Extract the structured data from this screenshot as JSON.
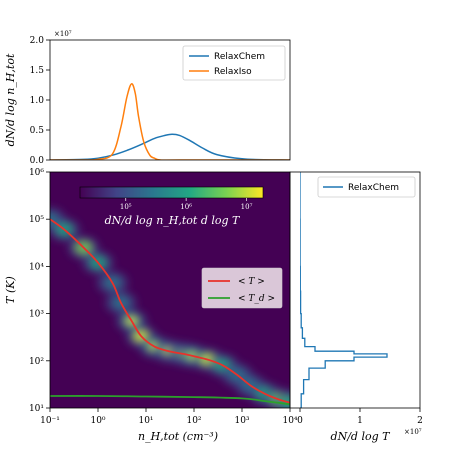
{
  "colors": {
    "relaxchem": "#1f77b4",
    "relaxiso": "#ff7f0e",
    "mean_t": "#e8322b",
    "mean_td": "#2ca02c",
    "heatmap_bg": "#440154",
    "colormap": "viridis"
  },
  "chart_data": [
    {
      "type": "line",
      "panel": "top",
      "xscale": "log",
      "xlim": [
        0.1,
        10000
      ],
      "ylim": [
        0,
        2.0
      ],
      "ylabel": "dN/d log n_H,tot",
      "y_multiplier_label": "×10⁷",
      "yticks": [
        "0.0",
        "0.5",
        "1.0",
        "1.5",
        "2.0"
      ],
      "legend": {
        "location": "top-right",
        "entries": [
          "RelaxChem",
          "RelaxIso"
        ]
      },
      "series": [
        {
          "name": "RelaxChem",
          "x": [
            0.1,
            0.5,
            1,
            2,
            4,
            8,
            15,
            25,
            35,
            50,
            80,
            150,
            300,
            1000,
            3000,
            10000
          ],
          "y": [
            0.0,
            0.01,
            0.03,
            0.08,
            0.16,
            0.26,
            0.36,
            0.41,
            0.43,
            0.41,
            0.33,
            0.2,
            0.09,
            0.02,
            0.005,
            0.0
          ]
        },
        {
          "name": "RelaxIso",
          "x": [
            0.1,
            0.5,
            1,
            2,
            3,
            4,
            5,
            6,
            7,
            9,
            12,
            15,
            20,
            50,
            10000
          ],
          "y": [
            0.0,
            0.0,
            0.01,
            0.1,
            0.55,
            1.05,
            1.27,
            1.1,
            0.72,
            0.3,
            0.08,
            0.03,
            0.0,
            0.0,
            0.0
          ]
        }
      ]
    },
    {
      "type": "heatmap",
      "panel": "main",
      "xscale": "log",
      "yscale": "log",
      "xlim": [
        0.1,
        10000
      ],
      "ylim": [
        10,
        1000000
      ],
      "xlabel": "n_H,tot (cm⁻³)",
      "ylabel": "T (K)",
      "xticks": [
        "10⁻¹",
        "10⁰",
        "10¹",
        "10²",
        "10³",
        "10⁴"
      ],
      "yticks": [
        "10¹",
        "10²",
        "10³",
        "10⁴",
        "10⁵",
        "10⁶"
      ],
      "colorbar": {
        "label": "dN/d log n_H,tot d log T",
        "ticks": [
          "10⁵",
          "10⁶",
          "10⁷"
        ],
        "location": "top"
      },
      "legend": {
        "location": "center-right",
        "entries": [
          "< T >",
          "< T_d >"
        ]
      },
      "series": [
        {
          "name": "< T >",
          "x": [
            0.1,
            0.2,
            0.5,
            1,
            2,
            3,
            5,
            8,
            15,
            30,
            60,
            100,
            200,
            400,
            800,
            1500,
            3000,
            6000,
            10000
          ],
          "y": [
            100000,
            60000,
            25000,
            12000,
            4500,
            1700,
            700,
            330,
            200,
            160,
            140,
            125,
            105,
            80,
            50,
            30,
            20,
            15,
            13
          ]
        },
        {
          "name": "< T_d >",
          "x": [
            0.1,
            1,
            10,
            100,
            1000,
            3000,
            10000
          ],
          "y": [
            18,
            18,
            17.5,
            17,
            16,
            14,
            12
          ]
        }
      ]
    },
    {
      "type": "line",
      "panel": "right",
      "xlabel": "dN/d log T",
      "x_multiplier_label": "×10⁷",
      "xlim": [
        0,
        2
      ],
      "xticks": [
        "0",
        "1",
        "2"
      ],
      "yscale": "log",
      "ylim": [
        10,
        1000000
      ],
      "legend": {
        "location": "top-right",
        "entries": [
          "RelaxChem"
        ]
      },
      "series": [
        {
          "name": "RelaxChem",
          "T": [
            10,
            20,
            40,
            70,
            100,
            120,
            140,
            160,
            200,
            300,
            500,
            1000,
            3000,
            10000,
            100000,
            1000000
          ],
          "value": [
            0.0,
            0.02,
            0.06,
            0.15,
            0.42,
            0.9,
            1.45,
            0.9,
            0.25,
            0.08,
            0.04,
            0.02,
            0.01,
            0.005,
            0.002,
            0.0
          ]
        }
      ]
    }
  ]
}
